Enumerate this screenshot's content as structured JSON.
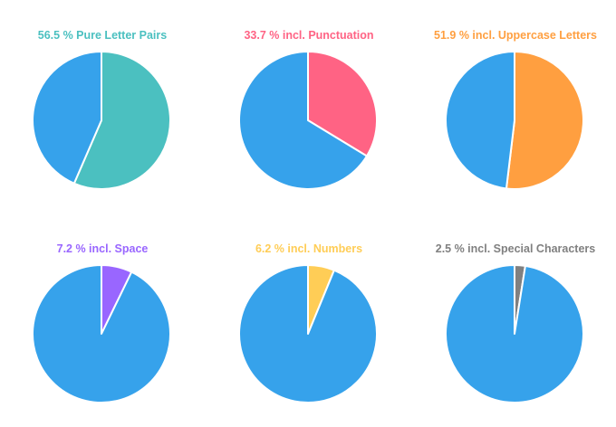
{
  "chart_data": [
    {
      "type": "pie",
      "title": "56.5 % Pure Letter Pairs",
      "title_color": "#4bc0c0",
      "slices": [
        {
          "value": 56.5,
          "color": "#4bc0c0"
        },
        {
          "value": 43.5,
          "color": "#36a2eb"
        }
      ]
    },
    {
      "type": "pie",
      "title": "33.7 % incl. Punctuation",
      "title_color": "#ff6384",
      "slices": [
        {
          "value": 33.7,
          "color": "#ff6384"
        },
        {
          "value": 66.3,
          "color": "#36a2eb"
        }
      ]
    },
    {
      "type": "pie",
      "title": "51.9 % incl. Uppercase Letters",
      "title_color": "#ff9f40",
      "slices": [
        {
          "value": 51.9,
          "color": "#ff9f40"
        },
        {
          "value": 48.1,
          "color": "#36a2eb"
        }
      ]
    },
    {
      "type": "pie",
      "title": "7.2 % incl. Space",
      "title_color": "#9966ff",
      "slices": [
        {
          "value": 7.2,
          "color": "#9966ff"
        },
        {
          "value": 92.8,
          "color": "#36a2eb"
        }
      ]
    },
    {
      "type": "pie",
      "title": "6.2 % incl. Numbers",
      "title_color": "#ffcd56",
      "slices": [
        {
          "value": 6.2,
          "color": "#ffcd56"
        },
        {
          "value": 93.8,
          "color": "#36a2eb"
        }
      ]
    },
    {
      "type": "pie",
      "title": "2.5 % incl. Special Characters",
      "title_color": "#808080",
      "slices": [
        {
          "value": 2.5,
          "color": "#808080"
        },
        {
          "value": 97.5,
          "color": "#36a2eb"
        }
      ]
    }
  ]
}
